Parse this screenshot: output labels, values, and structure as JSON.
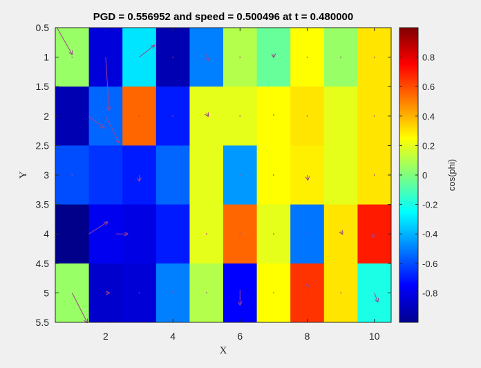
{
  "chart_data": {
    "type": "heatmap",
    "title": "PGD = 0.556952 and speed = 0.500496 at t = 0.480000",
    "xlabel": "X",
    "ylabel": "Y",
    "xlim": [
      0.5,
      10.5
    ],
    "ylim": [
      0.5,
      5.5
    ],
    "y_reversed": true,
    "grid": false,
    "x_ticks": [
      2,
      4,
      6,
      8,
      10
    ],
    "y_ticks": [
      0.5,
      1,
      1.5,
      2,
      2.5,
      3,
      3.5,
      4,
      4.5,
      5,
      5.5
    ],
    "colormap": "jet",
    "clim": [
      -1,
      1
    ],
    "colorbar": {
      "label": "cos(phi)",
      "ticks": [
        -0.8,
        -0.6,
        -0.4,
        -0.2,
        0,
        0.2,
        0.4,
        0.6,
        0.8
      ],
      "position": "right"
    },
    "rows": [
      1,
      2,
      3,
      4,
      5
    ],
    "columns": [
      1,
      2,
      3,
      4,
      5,
      6,
      7,
      8,
      9,
      10
    ],
    "values": [
      [
        0.05,
        -0.82,
        -0.3,
        -0.9,
        -0.5,
        0.1,
        -0.05,
        0.25,
        0.05,
        0.3
      ],
      [
        -0.9,
        -0.55,
        0.55,
        -0.7,
        0.2,
        0.2,
        0.25,
        0.3,
        0.2,
        0.3
      ],
      [
        -0.6,
        -0.65,
        -0.7,
        -0.55,
        0.2,
        -0.45,
        0.25,
        0.28,
        0.2,
        0.3
      ],
      [
        -0.98,
        -0.78,
        -0.8,
        -0.7,
        0.2,
        0.55,
        0.2,
        -0.52,
        0.3,
        0.7
      ],
      [
        0.05,
        -0.85,
        -0.83,
        -0.5,
        0.1,
        -0.75,
        0.25,
        0.65,
        0.3,
        -0.2
      ]
    ],
    "quiver": {
      "color": "#a0428f",
      "vectors": [
        {
          "x": 0.55,
          "y": 0.5,
          "u": 0.45,
          "v": 0.45
        },
        {
          "x": 1.0,
          "y": 1.0,
          "u": 0.0,
          "v": 0.0
        },
        {
          "x": 3.0,
          "y": 1.0,
          "u": 0.45,
          "v": -0.2
        },
        {
          "x": 4.0,
          "y": 1.0,
          "u": 0.0,
          "v": 0.0
        },
        {
          "x": 5.0,
          "y": 0.95,
          "u": 0.05,
          "v": 0.1
        },
        {
          "x": 6.0,
          "y": 1.0,
          "u": 0.0,
          "v": 0.0
        },
        {
          "x": 7.0,
          "y": 0.95,
          "u": 0.0,
          "v": 0.05
        },
        {
          "x": 8.0,
          "y": 1.0,
          "u": 0.0,
          "v": 0.0
        },
        {
          "x": 9.0,
          "y": 1.0,
          "u": 0.0,
          "v": 0.0
        },
        {
          "x": 10.0,
          "y": 1.0,
          "u": 0.05,
          "v": 0.02
        },
        {
          "x": 2.0,
          "y": 1.0,
          "u": 0.1,
          "v": 0.9
        },
        {
          "x": 1.5,
          "y": 2.0,
          "u": 0.45,
          "v": 0.2
        },
        {
          "x": 2.0,
          "y": 2.0,
          "u": 0.4,
          "v": 0.45
        },
        {
          "x": 3.0,
          "y": 2.0,
          "u": 0.0,
          "v": 0.0
        },
        {
          "x": 4.0,
          "y": 2.0,
          "u": 0.0,
          "v": 0.0
        },
        {
          "x": 5.0,
          "y": 1.95,
          "u": 0.05,
          "v": 0.05
        },
        {
          "x": 6.0,
          "y": 2.0,
          "u": 0.0,
          "v": 0.0
        },
        {
          "x": 7.0,
          "y": 1.98,
          "u": 0.0,
          "v": 0.03
        },
        {
          "x": 8.0,
          "y": 2.0,
          "u": 0.0,
          "v": 0.0
        },
        {
          "x": 10.0,
          "y": 2.0,
          "u": 0.02,
          "v": 0.0
        },
        {
          "x": 1.0,
          "y": 3.0,
          "u": 0.0,
          "v": 0.0
        },
        {
          "x": 3.0,
          "y": 3.0,
          "u": 0.0,
          "v": 0.1
        },
        {
          "x": 6.0,
          "y": 3.0,
          "u": 0.02,
          "v": 0.02
        },
        {
          "x": 7.0,
          "y": 3.0,
          "u": 0.0,
          "v": 0.0
        },
        {
          "x": 8.0,
          "y": 3.0,
          "u": 0.02,
          "v": 0.08
        },
        {
          "x": 10.0,
          "y": 3.0,
          "u": 0.0,
          "v": 0.0
        },
        {
          "x": 1.5,
          "y": 4.0,
          "u": 0.55,
          "v": -0.2
        },
        {
          "x": 2.3,
          "y": 4.0,
          "u": 0.35,
          "v": 0.0
        },
        {
          "x": 5.0,
          "y": 4.0,
          "u": -0.05,
          "v": 0.0
        },
        {
          "x": 6.0,
          "y": 4.0,
          "u": 0.0,
          "v": 0.0
        },
        {
          "x": 7.0,
          "y": 4.0,
          "u": 0.0,
          "v": 0.0
        },
        {
          "x": 8.0,
          "y": 4.0,
          "u": 0.0,
          "v": 0.0
        },
        {
          "x": 9.0,
          "y": 3.95,
          "u": 0.05,
          "v": 0.05
        },
        {
          "x": 10.0,
          "y": 4.0,
          "u": -0.05,
          "v": 0.05
        },
        {
          "x": 1.0,
          "y": 5.0,
          "u": 0.45,
          "v": 0.5
        },
        {
          "x": 2.0,
          "y": 5.0,
          "u": 0.1,
          "v": 0.0
        },
        {
          "x": 3.0,
          "y": 5.0,
          "u": 0.0,
          "v": 0.0
        },
        {
          "x": 4.0,
          "y": 4.98,
          "u": 0.05,
          "v": 0.02
        },
        {
          "x": 5.0,
          "y": 5.0,
          "u": 0.0,
          "v": 0.0
        },
        {
          "x": 6.0,
          "y": 4.95,
          "u": 0.0,
          "v": 0.25
        },
        {
          "x": 7.0,
          "y": 5.0,
          "u": -0.05,
          "v": 0.0
        },
        {
          "x": 8.0,
          "y": 5.1,
          "u": 0.0,
          "v": -0.25
        },
        {
          "x": 9.0,
          "y": 5.0,
          "u": 0.0,
          "v": 0.0
        },
        {
          "x": 10.0,
          "y": 5.0,
          "u": 0.1,
          "v": 0.15
        }
      ]
    }
  }
}
